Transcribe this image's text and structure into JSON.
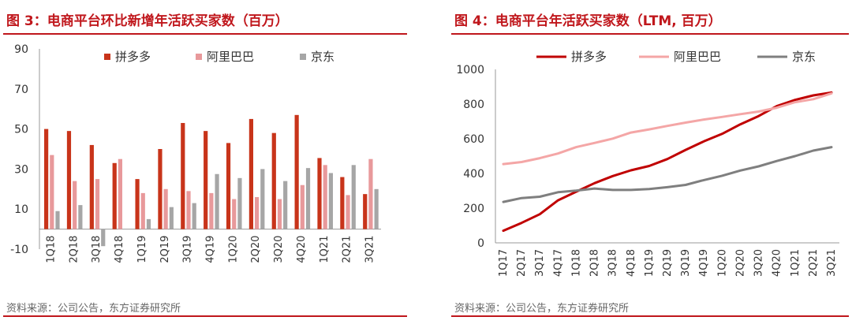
{
  "left": {
    "figure_title": "图 3：电商平台环比新增年活跃买家数（百万）",
    "source": "资料来源：公司公告，东方证券研究所"
  },
  "right": {
    "figure_title": "图 4：电商平台年活跃买家数（LTM, 百万）",
    "source": "资料来源：公司公告，东方证券研究所"
  },
  "chart_data": [
    {
      "type": "bar",
      "title": "图 3：电商平台环比新增年活跃买家数（百万）",
      "categories": [
        "1Q18",
        "2Q18",
        "3Q18",
        "4Q18",
        "1Q19",
        "2Q19",
        "3Q19",
        "4Q19",
        "1Q20",
        "2Q20",
        "3Q20",
        "4Q20",
        "1Q21",
        "2Q21",
        "3Q21"
      ],
      "series": [
        {
          "name": "拼多多",
          "color": "#c8341a",
          "values": [
            50,
            49,
            42,
            33,
            25,
            40,
            53,
            49,
            43,
            55,
            48,
            57,
            35.5,
            26,
            17.5
          ]
        },
        {
          "name": "阿里巴巴",
          "color": "#e8999b",
          "values": [
            37,
            24,
            25,
            35,
            18,
            20,
            19,
            18,
            15,
            16,
            15,
            22,
            32,
            17,
            35
          ]
        },
        {
          "name": "京东",
          "color": "#a6a6a6",
          "values": [
            9,
            12,
            null,
            null,
            5,
            11,
            13,
            27.5,
            25.5,
            30,
            24,
            30.5,
            28,
            32,
            20
          ]
        }
      ],
      "extra_values_note": "",
      "jd_values_full": [
        9,
        12,
        -8.5,
        null,
        5,
        11,
        13,
        27.5,
        25.5,
        30,
        24,
        30.5,
        28,
        32,
        20
      ],
      "ylim": [
        -10,
        90
      ],
      "yticks": [
        -10,
        10,
        30,
        50,
        70,
        90
      ],
      "legend_position": "top"
    },
    {
      "type": "line",
      "title": "图 4：电商平台年活跃买家数（LTM, 百万）",
      "x": [
        "1Q17",
        "2Q17",
        "3Q17",
        "4Q17",
        "1Q18",
        "2Q18",
        "3Q18",
        "4Q18",
        "1Q19",
        "2Q19",
        "3Q19",
        "4Q19",
        "1Q20",
        "2Q20",
        "3Q20",
        "4Q20",
        "1Q21",
        "2Q21",
        "3Q21"
      ],
      "xticks_shown": [
        "1Q17",
        "2Q17",
        "3Q17",
        "4Q17",
        "1Q18",
        "2Q18",
        "3Q18",
        "4Q18",
        "1Q19",
        "2Q19",
        "3Q19",
        "4Q19",
        "1Q20",
        "2Q20",
        "3Q20",
        "4Q20",
        "1Q21",
        "2Q21",
        "3Q21"
      ],
      "series": [
        {
          "name": "拼多多",
          "color": "#c00000",
          "values": [
            70,
            115,
            165,
            245,
            295,
            344,
            385,
            418,
            443,
            483,
            536,
            585,
            628,
            683,
            731,
            788,
            824,
            850,
            867
          ]
        },
        {
          "name": "阿里巴巴",
          "color": "#f4a6a6",
          "values": [
            454,
            466,
            488,
            515,
            552,
            576,
            601,
            636,
            654,
            674,
            693,
            711,
            726,
            742,
            757,
            779,
            811,
            828,
            862
          ]
        },
        {
          "name": "京东",
          "color": "#7f7f7f",
          "values": [
            236,
            258,
            266,
            292,
            301,
            313,
            305,
            305,
            310,
            321,
            334,
            362,
            387,
            417,
            441,
            472,
            500,
            532,
            552
          ]
        }
      ],
      "ylim": [
        0,
        1000
      ],
      "yticks": [
        0,
        200,
        400,
        600,
        800,
        1000
      ],
      "legend_position": "top"
    }
  ]
}
